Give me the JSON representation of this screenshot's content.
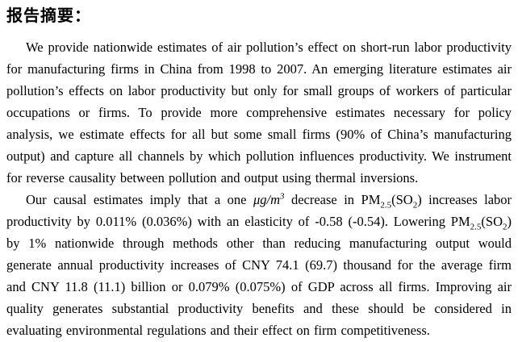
{
  "page": {
    "background_color": "#ffffff",
    "text_color": "#000000"
  },
  "document": {
    "title": "报告摘要：",
    "paragraph1": {
      "text": "We provide nationwide estimates of air pollution’s effect on short-run labor productivity for manufacturing firms in China from 1998 to 2007. An emerging literature estimates air pollution’s effects on labor productivity but only for small groups of workers of particular occupations or firms. To provide more comprehensive estimates necessary for policy analysis, we estimate effects for all but some small firms (90% of China’s manufacturing output) and capture all channels by which pollution influences productivity. We instrument for reverse causality between pollution and output using thermal inversions."
    },
    "paragraph2": {
      "runs": [
        {
          "text": "Our causal estimates imply that a one ",
          "style": "normal"
        },
        {
          "text": "μg/m",
          "style": "italic"
        },
        {
          "text": "3",
          "style": "italic-superscript"
        },
        {
          "text": " decrease in PM",
          "style": "normal"
        },
        {
          "text": "2.5",
          "style": "subscript"
        },
        {
          "text": "(SO",
          "style": "normal"
        },
        {
          "text": "2",
          "style": "subscript"
        },
        {
          "text": ") increases labor productivity by 0.011% (0.036%) with an elasticity of -0.58 (-0.54). Lowering PM",
          "style": "normal"
        },
        {
          "text": "2.5",
          "style": "subscript"
        },
        {
          "text": "(SO",
          "style": "normal"
        },
        {
          "text": "2",
          "style": "subscript"
        },
        {
          "text": ") by 1% nationwide through methods other than reducing manufacturing output would generate annual productivity increases of CNY 74.1 (69.7) thousand for the average firm and CNY 11.8 (11.1) billion or 0.079% (0.075%) of GDP across all firms. Improving air quality generates substantial productivity benefits and these should be considered in evaluating environmental regulations and their effect on firm competitiveness.",
          "style": "normal"
        }
      ]
    }
  }
}
